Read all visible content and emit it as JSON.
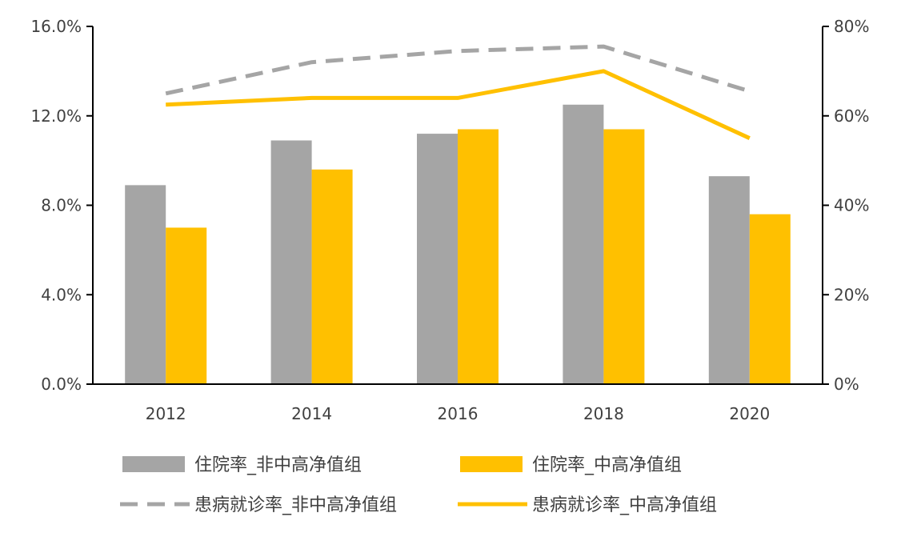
{
  "chart_data": {
    "type": "bar",
    "categories": [
      "2012",
      "2014",
      "2016",
      "2018",
      "2020"
    ],
    "series": [
      {
        "name": "住院率_非中高净值组",
        "kind": "bar",
        "axis": "left",
        "color": "#A5A5A5",
        "values": [
          8.9,
          10.9,
          11.2,
          12.5,
          9.3
        ]
      },
      {
        "name": "住院率_中高净值组",
        "kind": "bar",
        "axis": "left",
        "color": "#FFC000",
        "values": [
          7.0,
          9.6,
          11.4,
          11.4,
          7.6
        ]
      },
      {
        "name": "患病就诊率_非中高净值组",
        "kind": "line",
        "dash": true,
        "axis": "right",
        "color": "#A5A5A5",
        "values": [
          65,
          72,
          74.5,
          75.5,
          65.5
        ]
      },
      {
        "name": "患病就诊率_中高净值组",
        "kind": "line",
        "dash": false,
        "axis": "right",
        "color": "#FFC000",
        "values": [
          62.5,
          64,
          64,
          70,
          55
        ]
      }
    ],
    "y_left": {
      "ticks": [
        "0.0%",
        "4.0%",
        "8.0%",
        "12.0%",
        "16.0%"
      ],
      "lim": [
        0,
        16
      ]
    },
    "y_right": {
      "ticks": [
        "0%",
        "20%",
        "40%",
        "60%",
        "80%"
      ],
      "lim": [
        0,
        80
      ]
    },
    "title": "",
    "xlabel": "",
    "ylabel": "",
    "grid": false,
    "legend_position": "bottom"
  }
}
